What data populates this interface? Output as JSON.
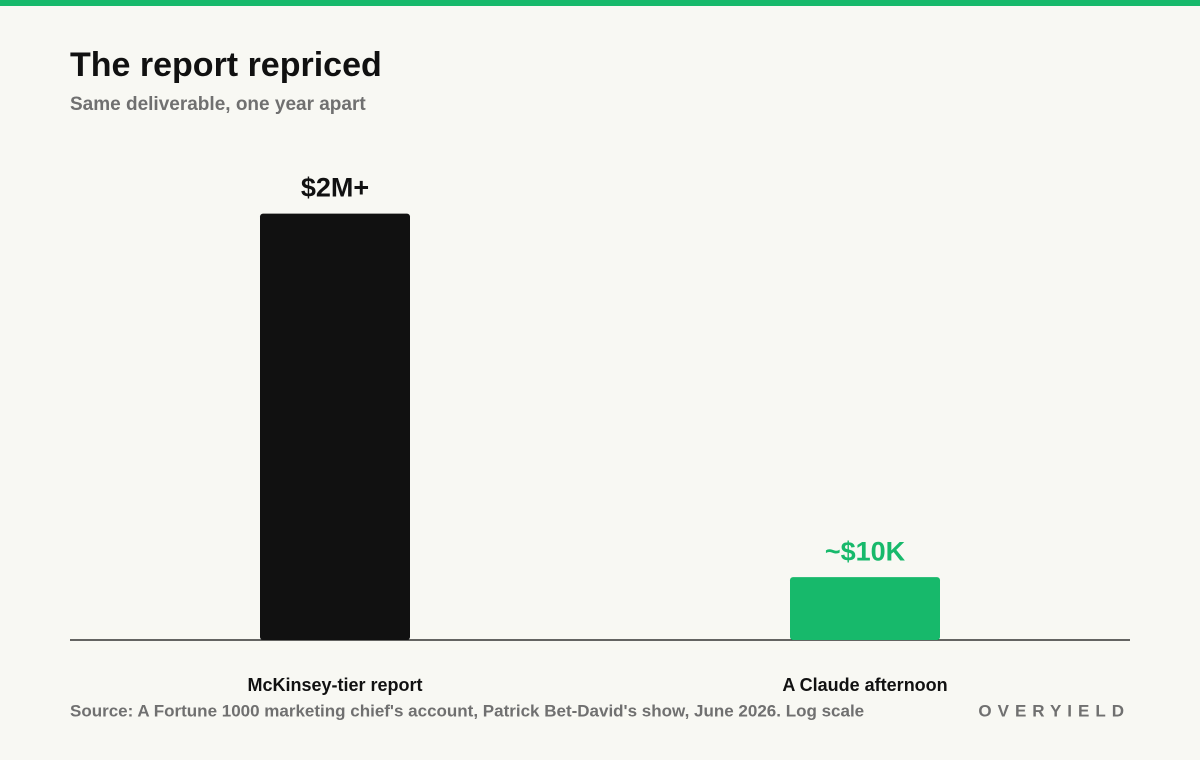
{
  "chart_data": {
    "type": "bar",
    "title": "The report repriced",
    "subtitle": "Same deliverable, one year apart",
    "categories": [
      "McKinsey-tier report",
      "A Claude afternoon"
    ],
    "values": [
      2000000,
      10000
    ],
    "value_labels": [
      "$2M+",
      "~$10K"
    ],
    "colors": [
      "#111111",
      "#17b96b"
    ],
    "ylim": [
      4000,
      4000000
    ],
    "log_scale": true,
    "source": "Source: A Fortune 1000 marketing chief's account, Patrick Bet-David's show, June 2026. Log scale"
  },
  "brand": "OVERYIELD"
}
